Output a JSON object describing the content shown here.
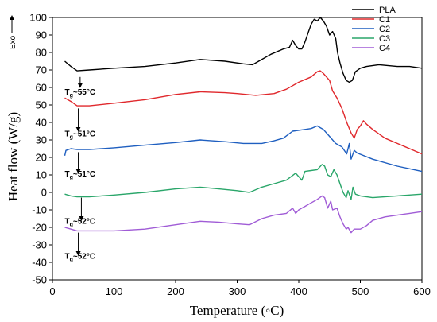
{
  "chart_data": {
    "type": "line",
    "xlabel": "Temperature (◦C)",
    "ylabel": "Heat flow (W/g)",
    "exo_label": "Exo",
    "xlim": [
      0,
      600
    ],
    "ylim": [
      -50,
      100
    ],
    "x_ticks": [
      0,
      100,
      200,
      300,
      400,
      500,
      600
    ],
    "y_ticks": [
      -50,
      -40,
      -30,
      -20,
      -10,
      0,
      10,
      20,
      30,
      40,
      50,
      60,
      70,
      80,
      90,
      100
    ],
    "grid": false,
    "legend_position": "top-right",
    "series": [
      {
        "name": "PLA",
        "color": "#000000",
        "points": [
          [
            20,
            75
          ],
          [
            30,
            72
          ],
          [
            40,
            69.5
          ],
          [
            60,
            70
          ],
          [
            100,
            71
          ],
          [
            150,
            72
          ],
          [
            200,
            74
          ],
          [
            240,
            76
          ],
          [
            280,
            75
          ],
          [
            310,
            73.5
          ],
          [
            325,
            73
          ],
          [
            335,
            75
          ],
          [
            355,
            79
          ],
          [
            375,
            82
          ],
          [
            385,
            83
          ],
          [
            390,
            87
          ],
          [
            395,
            84
          ],
          [
            400,
            82
          ],
          [
            405,
            82
          ],
          [
            410,
            86
          ],
          [
            415,
            91
          ],
          [
            420,
            96
          ],
          [
            425,
            99
          ],
          [
            430,
            98
          ],
          [
            435,
            100
          ],
          [
            440,
            98
          ],
          [
            445,
            95
          ],
          [
            450,
            90
          ],
          [
            455,
            92
          ],
          [
            460,
            88
          ],
          [
            463,
            80
          ],
          [
            467,
            74
          ],
          [
            472,
            68
          ],
          [
            477,
            64
          ],
          [
            482,
            63
          ],
          [
            487,
            64
          ],
          [
            492,
            69
          ],
          [
            500,
            71
          ],
          [
            510,
            72
          ],
          [
            530,
            73
          ],
          [
            560,
            72
          ],
          [
            580,
            72
          ],
          [
            600,
            71
          ]
        ]
      },
      {
        "name": "C1",
        "color": "#e0282c",
        "points": [
          [
            20,
            54
          ],
          [
            30,
            52
          ],
          [
            40,
            49.5
          ],
          [
            60,
            49.5
          ],
          [
            100,
            51
          ],
          [
            150,
            53
          ],
          [
            200,
            56
          ],
          [
            240,
            57.5
          ],
          [
            280,
            57
          ],
          [
            300,
            56.5
          ],
          [
            330,
            55.5
          ],
          [
            360,
            56.5
          ],
          [
            380,
            59
          ],
          [
            400,
            63
          ],
          [
            420,
            66
          ],
          [
            430,
            69
          ],
          [
            435,
            69.5
          ],
          [
            440,
            68
          ],
          [
            450,
            64
          ],
          [
            455,
            58
          ],
          [
            462,
            54
          ],
          [
            470,
            48
          ],
          [
            478,
            40
          ],
          [
            485,
            34
          ],
          [
            490,
            31
          ],
          [
            495,
            36
          ],
          [
            500,
            38
          ],
          [
            505,
            41
          ],
          [
            510,
            39
          ],
          [
            520,
            36
          ],
          [
            540,
            31
          ],
          [
            560,
            28
          ],
          [
            580,
            25
          ],
          [
            600,
            22
          ]
        ]
      },
      {
        "name": "C2",
        "color": "#1f5fc0",
        "points": [
          [
            20,
            21
          ],
          [
            22,
            24
          ],
          [
            30,
            25
          ],
          [
            40,
            24.5
          ],
          [
            60,
            24.5
          ],
          [
            100,
            25.5
          ],
          [
            150,
            27
          ],
          [
            200,
            28.5
          ],
          [
            240,
            30
          ],
          [
            280,
            29
          ],
          [
            310,
            28
          ],
          [
            340,
            28
          ],
          [
            360,
            29.5
          ],
          [
            375,
            31
          ],
          [
            390,
            35
          ],
          [
            410,
            36
          ],
          [
            420,
            36.5
          ],
          [
            430,
            38
          ],
          [
            435,
            37
          ],
          [
            440,
            36
          ],
          [
            450,
            32
          ],
          [
            460,
            28
          ],
          [
            470,
            26
          ],
          [
            478,
            22
          ],
          [
            482,
            28
          ],
          [
            485,
            19
          ],
          [
            490,
            24
          ],
          [
            495,
            22.5
          ],
          [
            520,
            19
          ],
          [
            560,
            15
          ],
          [
            600,
            12
          ]
        ]
      },
      {
        "name": "C3",
        "color": "#2aa66a",
        "points": [
          [
            20,
            -1
          ],
          [
            30,
            -2
          ],
          [
            40,
            -2.5
          ],
          [
            60,
            -2.5
          ],
          [
            100,
            -1.5
          ],
          [
            150,
            0
          ],
          [
            200,
            2
          ],
          [
            240,
            3
          ],
          [
            270,
            2
          ],
          [
            300,
            1
          ],
          [
            320,
            0
          ],
          [
            340,
            3
          ],
          [
            360,
            5
          ],
          [
            380,
            7
          ],
          [
            395,
            11
          ],
          [
            405,
            7
          ],
          [
            410,
            12
          ],
          [
            420,
            12.5
          ],
          [
            430,
            13
          ],
          [
            438,
            16
          ],
          [
            442,
            15
          ],
          [
            447,
            10
          ],
          [
            452,
            9
          ],
          [
            457,
            13
          ],
          [
            462,
            10
          ],
          [
            467,
            5
          ],
          [
            472,
            0
          ],
          [
            477,
            -3
          ],
          [
            480,
            1
          ],
          [
            485,
            -4
          ],
          [
            488,
            3
          ],
          [
            492,
            -1
          ],
          [
            500,
            -2
          ],
          [
            520,
            -3
          ],
          [
            560,
            -2
          ],
          [
            600,
            -1
          ]
        ]
      },
      {
        "name": "C4",
        "color": "#a05cd6",
        "points": [
          [
            20,
            -20
          ],
          [
            30,
            -21
          ],
          [
            40,
            -22
          ],
          [
            60,
            -22
          ],
          [
            100,
            -22
          ],
          [
            150,
            -21
          ],
          [
            200,
            -18.5
          ],
          [
            240,
            -16.5
          ],
          [
            270,
            -17
          ],
          [
            300,
            -18
          ],
          [
            320,
            -18.5
          ],
          [
            340,
            -15
          ],
          [
            360,
            -13
          ],
          [
            380,
            -12
          ],
          [
            390,
            -9
          ],
          [
            395,
            -12
          ],
          [
            400,
            -10
          ],
          [
            410,
            -8
          ],
          [
            420,
            -6
          ],
          [
            430,
            -4
          ],
          [
            438,
            -2
          ],
          [
            442,
            -3
          ],
          [
            447,
            -9
          ],
          [
            452,
            -5
          ],
          [
            455,
            -10
          ],
          [
            462,
            -9
          ],
          [
            467,
            -14
          ],
          [
            472,
            -18
          ],
          [
            477,
            -21
          ],
          [
            480,
            -20
          ],
          [
            485,
            -23
          ],
          [
            490,
            -21
          ],
          [
            500,
            -21
          ],
          [
            510,
            -19
          ],
          [
            520,
            -16
          ],
          [
            540,
            -14
          ],
          [
            560,
            -13
          ],
          [
            580,
            -12
          ],
          [
            600,
            -11
          ]
        ]
      }
    ],
    "annotations": [
      {
        "main": "T",
        "sub": "g",
        "rest": "~55°C",
        "arrow_x": 45,
        "arrow_from": 66,
        "arrow_to": 61,
        "label_x": 20,
        "label_y": 56
      },
      {
        "main": "T",
        "sub": "g",
        "rest": "~51°C",
        "arrow_x": 42,
        "arrow_from": 48,
        "arrow_to": 36,
        "label_x": 20,
        "label_y": 32
      },
      {
        "main": "T",
        "sub": "g",
        "rest": "~51°C",
        "arrow_x": 42,
        "arrow_from": 23,
        "arrow_to": 12,
        "label_x": 20,
        "label_y": 9
      },
      {
        "main": "T",
        "sub": "g",
        "rest": "~52°C",
        "arrow_x": 47,
        "arrow_from": -3,
        "arrow_to": -15,
        "label_x": 20,
        "label_y": -18
      },
      {
        "main": "T",
        "sub": "g",
        "rest": "~52°C",
        "arrow_x": 42,
        "arrow_from": -23,
        "arrow_to": -35,
        "label_x": 20,
        "label_y": -38
      }
    ]
  }
}
